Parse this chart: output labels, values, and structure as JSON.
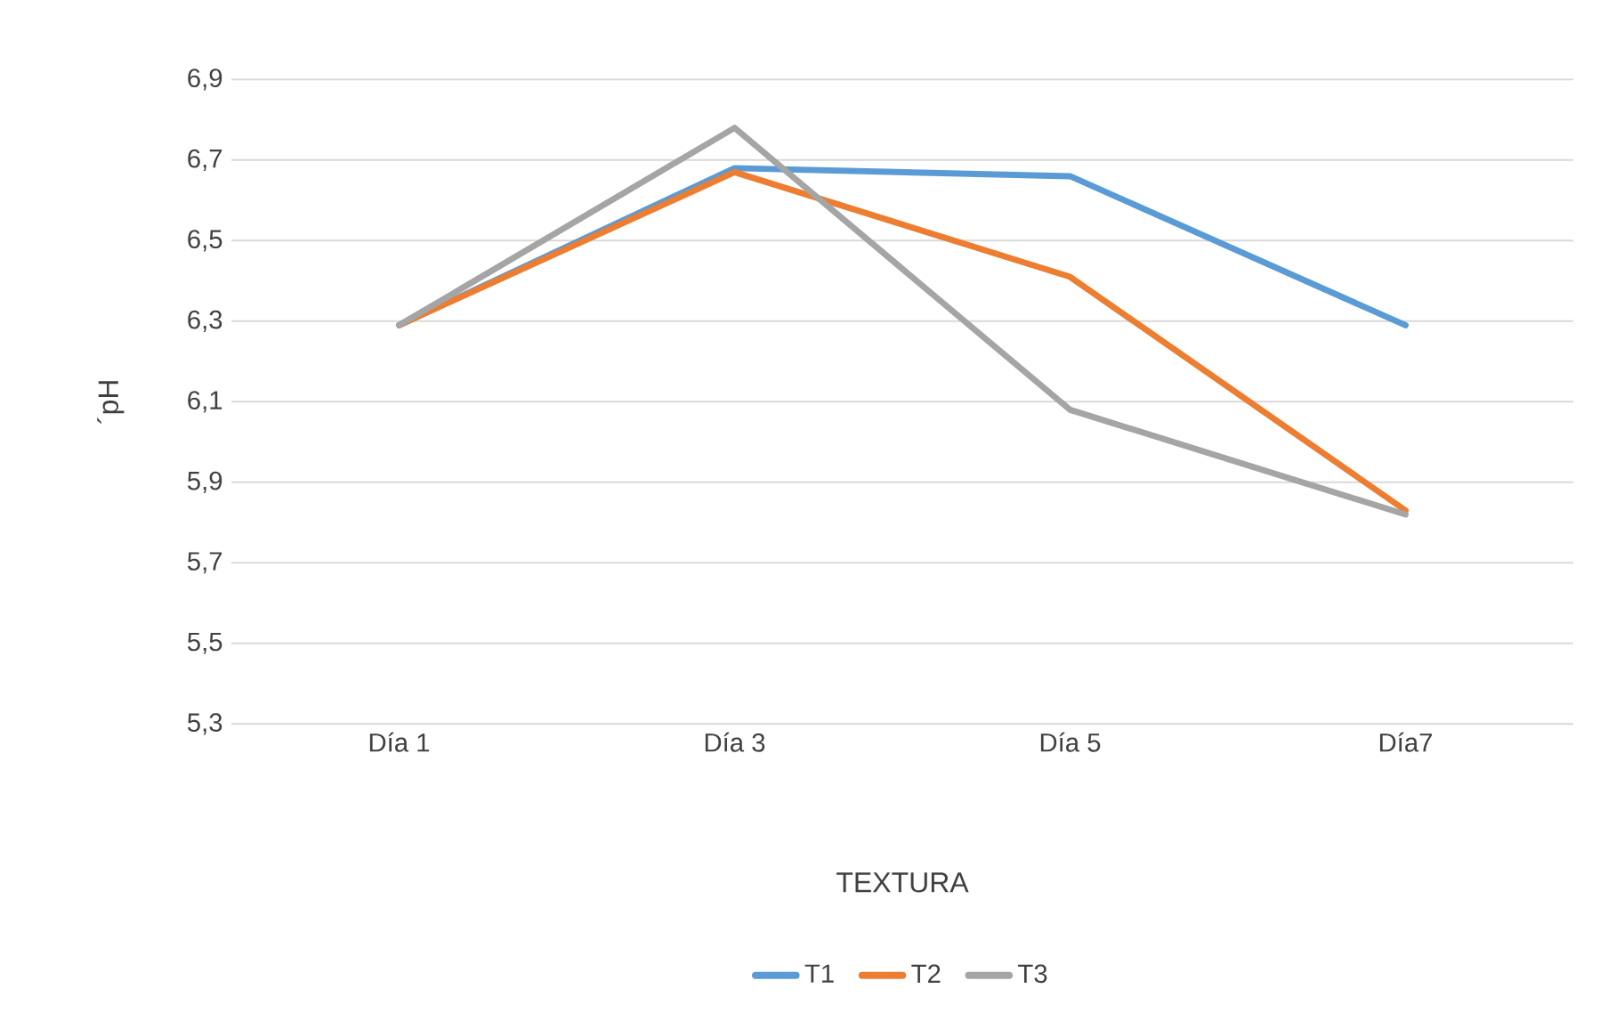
{
  "chart_data": {
    "type": "line",
    "xlabel": "TEXTURA",
    "ylabel": "´pH",
    "categories": [
      "Día 1",
      "Día 3",
      "Día 5",
      "Día7"
    ],
    "series": [
      {
        "name": "T1",
        "color": "#5b9bd5",
        "values": [
          6.29,
          6.68,
          6.66,
          6.29
        ]
      },
      {
        "name": "T2",
        "color": "#ed7d31",
        "values": [
          6.29,
          6.67,
          6.41,
          5.83
        ]
      },
      {
        "name": "T3",
        "color": "#a5a5a5",
        "values": [
          6.29,
          6.78,
          6.08,
          5.82
        ]
      }
    ],
    "ylim": [
      5.3,
      6.9
    ],
    "yticks": [
      {
        "value": 5.3,
        "label": "5,3"
      },
      {
        "value": 5.5,
        "label": "5,5"
      },
      {
        "value": 5.7,
        "label": "5,7"
      },
      {
        "value": 5.9,
        "label": "5,9"
      },
      {
        "value": 6.1,
        "label": "6,1"
      },
      {
        "value": 6.3,
        "label": "6,3"
      },
      {
        "value": 6.5,
        "label": "6,5"
      },
      {
        "value": 6.7,
        "label": "6,7"
      },
      {
        "value": 6.9,
        "label": "6,9"
      }
    ],
    "grid": "y",
    "legend": "bottom",
    "marker": "none",
    "line_style": "solid"
  }
}
